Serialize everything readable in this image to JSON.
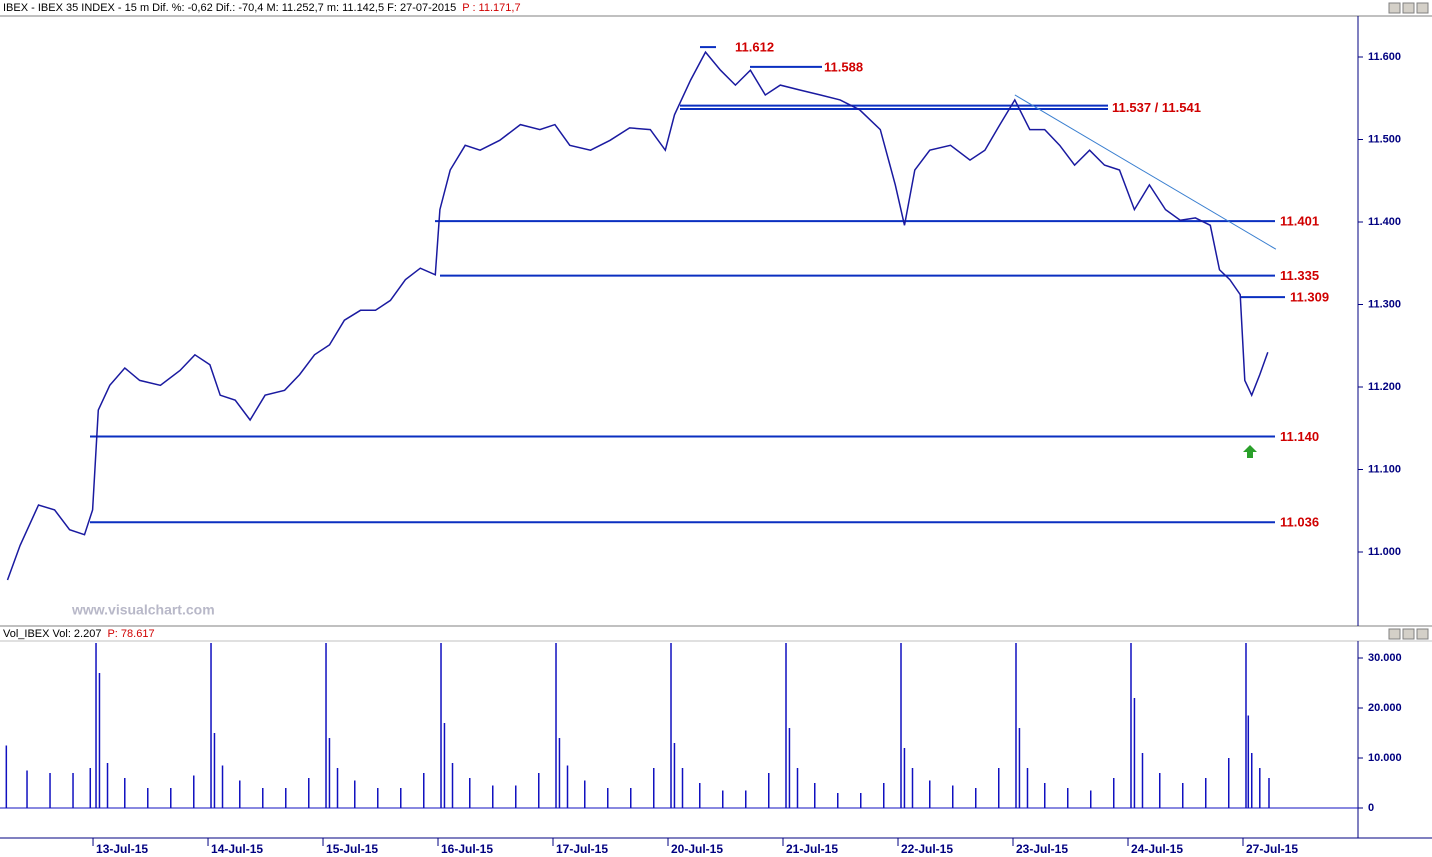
{
  "chart_data": [
    {
      "type": "line",
      "title": "IBEX - IBEX 35 INDEX - 15 m  Dif. %: -0,62  Dif.: -70,4  M: 11.252,7  m: 11.142,5  F: 27-07-2015",
      "subtitle": "P : 11.171,7",
      "watermark": "www.visualchart.com",
      "xlim": [
        -0.835,
        10.974
      ],
      "xticks": [
        {
          "value": 0,
          "label": "13-Jul-15"
        },
        {
          "value": 1,
          "label": "14-Jul-15"
        },
        {
          "value": 2,
          "label": "15-Jul-15"
        },
        {
          "value": 3,
          "label": "16-Jul-15"
        },
        {
          "value": 4,
          "label": "17-Jul-15"
        },
        {
          "value": 5,
          "label": "20-Jul-15"
        },
        {
          "value": 6,
          "label": "21-Jul-15"
        },
        {
          "value": 7,
          "label": "22-Jul-15"
        },
        {
          "value": 8,
          "label": "23-Jul-15"
        },
        {
          "value": 9,
          "label": "24-Jul-15"
        },
        {
          "value": 10,
          "label": "27-Jul-15"
        }
      ],
      "ylim": [
        10911.5,
        11649.7
      ],
      "yticks": [
        {
          "value": 11000,
          "label": "11.000"
        },
        {
          "value": 11100,
          "label": "11.100"
        },
        {
          "value": 11200,
          "label": "11.200"
        },
        {
          "value": 11300,
          "label": "11.300"
        },
        {
          "value": 11400,
          "label": "11.400"
        },
        {
          "value": 11500,
          "label": "11.500"
        },
        {
          "value": 11600,
          "label": "11.600"
        }
      ],
      "x": [
        -0.77,
        -0.66,
        -0.5,
        -0.36,
        -0.23,
        -0.1,
        -0.03,
        0.02,
        0.12,
        0.25,
        0.38,
        0.56,
        0.73,
        0.86,
        0.99,
        1.08,
        1.21,
        1.34,
        1.47,
        1.64,
        1.77,
        1.9,
        2.03,
        2.16,
        2.3,
        2.43,
        2.56,
        2.69,
        2.82,
        2.95,
        2.99,
        3.08,
        3.21,
        3.34,
        3.51,
        3.69,
        3.86,
        3.99,
        4.12,
        4.3,
        4.47,
        4.64,
        4.82,
        4.95,
        5.03,
        5.17,
        5.3,
        5.43,
        5.56,
        5.69,
        5.82,
        5.95,
        6.12,
        6.3,
        6.47,
        6.64,
        6.82,
        6.95,
        7.03,
        7.12,
        7.25,
        7.43,
        7.6,
        7.73,
        7.86,
        7.99,
        8.12,
        8.25,
        8.38,
        8.51,
        8.64,
        8.77,
        8.9,
        9.03,
        9.16,
        9.3,
        9.43,
        9.56,
        9.69,
        9.77,
        9.86,
        9.95,
        9.99,
        10.05,
        10.12,
        10.19
      ],
      "series": [
        {
          "name": "IBEX",
          "color": "#1a1aa0",
          "values": [
            10966,
            11008,
            11057,
            11051,
            11027,
            11021,
            11051,
            11172,
            11202,
            11223,
            11208,
            11202,
            11220,
            11239,
            11227,
            11190,
            11184,
            11160,
            11190,
            11196,
            11215,
            11239,
            11251,
            11281,
            11293,
            11293,
            11305,
            11330,
            11344,
            11336,
            11415,
            11463,
            11493,
            11487,
            11499,
            11518,
            11512,
            11518,
            11493,
            11487,
            11499,
            11514,
            11512,
            11487,
            11530,
            11572,
            11606,
            11584,
            11566,
            11584,
            11554,
            11566,
            11560,
            11554,
            11548,
            11536,
            11512,
            11445,
            11396,
            11463,
            11487,
            11493,
            11475,
            11487,
            11518,
            11548,
            11512,
            11512,
            11493,
            11469,
            11487,
            11469,
            11463,
            11415,
            11445,
            11415,
            11402,
            11405,
            11396,
            11342,
            11330,
            11312,
            11208,
            11190,
            11215,
            11242
          ]
        }
      ],
      "levels": [
        {
          "label": "11.612",
          "values": [
            11612
          ]
        },
        {
          "label": "11.588",
          "values": [
            11588
          ]
        },
        {
          "label": "11.537 / 11.541",
          "values": [
            11537,
            11541
          ]
        },
        {
          "label": "11.401",
          "values": [
            11401
          ]
        },
        {
          "label": "11.335",
          "values": [
            11335
          ]
        },
        {
          "label": "11.309",
          "values": [
            11309
          ]
        },
        {
          "label": "11.140",
          "values": [
            11140
          ]
        },
        {
          "label": "11.036",
          "values": [
            11036
          ]
        }
      ],
      "level_color": "#0a2fc0",
      "label_color": "#d00000",
      "trendline": {
        "x": [
          7.99,
          10.26
        ],
        "values": [
          11554,
          11367
        ],
        "color": "#3a7fd0"
      }
    },
    {
      "type": "bar",
      "title": "Vol_IBEX Vol: 2.207",
      "subtitle": "P: 78.617",
      "xlim": [
        -0.835,
        10.974
      ],
      "ylim": [
        -5600,
        33400
      ],
      "yticks": [
        0,
        {
          "value": 10000,
          "label": "10.000"
        },
        {
          "value": 20000,
          "label": "20.000"
        },
        {
          "value": 30000,
          "label": "30.000"
        }
      ],
      "x": [
        -0.78,
        -0.6,
        -0.4,
        -0.2,
        -0.05,
        0,
        0.03,
        0.1,
        0.25,
        0.45,
        0.65,
        0.85,
        1,
        1.03,
        1.1,
        1.25,
        1.45,
        1.65,
        1.85,
        2,
        2.03,
        2.1,
        2.25,
        2.45,
        2.65,
        2.85,
        3,
        3.03,
        3.1,
        3.25,
        3.45,
        3.65,
        3.85,
        4,
        4.03,
        4.1,
        4.25,
        4.45,
        4.65,
        4.85,
        5,
        5.03,
        5.1,
        5.25,
        5.45,
        5.65,
        5.85,
        6,
        6.03,
        6.1,
        6.25,
        6.45,
        6.65,
        6.85,
        7,
        7.03,
        7.1,
        7.25,
        7.45,
        7.65,
        7.85,
        8,
        8.03,
        8.1,
        8.25,
        8.45,
        8.65,
        8.85,
        9,
        9.03,
        9.1,
        9.25,
        9.45,
        9.65,
        9.85,
        10,
        10.02,
        10.05,
        10.12,
        10.2
      ],
      "series": [
        {
          "name": "Vol_IBEX",
          "color": "#1010c0",
          "values": [
            12500,
            7500,
            7000,
            7000,
            8000,
            33000,
            27000,
            9000,
            6000,
            4000,
            4000,
            6500,
            33000,
            15000,
            8500,
            5500,
            4000,
            4000,
            6000,
            33000,
            14000,
            8000,
            5500,
            4000,
            4000,
            7000,
            33000,
            17000,
            9000,
            6000,
            4500,
            4500,
            7000,
            33000,
            14000,
            8500,
            5500,
            4000,
            4000,
            8000,
            33000,
            13000,
            8000,
            5000,
            3500,
            3500,
            7000,
            33000,
            16000,
            8000,
            5000,
            3000,
            3000,
            5000,
            33000,
            12000,
            8000,
            5500,
            4500,
            4000,
            8000,
            33000,
            16000,
            8000,
            5000,
            4000,
            3500,
            6000,
            33000,
            22000,
            11000,
            7000,
            5000,
            6000,
            10000,
            33000,
            18500,
            11000,
            8000,
            6000
          ]
        }
      ]
    }
  ]
}
